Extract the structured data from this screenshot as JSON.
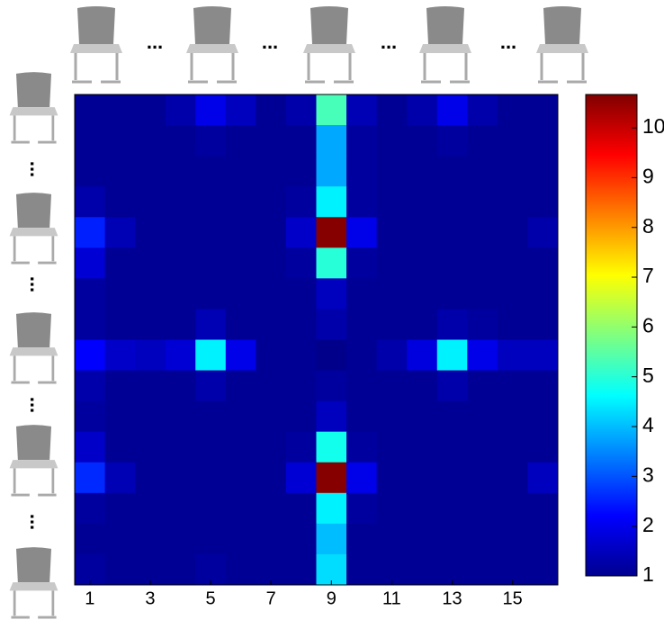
{
  "chart_data": {
    "type": "heatmap",
    "separator": "...",
    "x": [
      1,
      2,
      3,
      4,
      5,
      6,
      7,
      8,
      9,
      10,
      11,
      12,
      13,
      14,
      15,
      16
    ],
    "xlim": [
      0.5,
      16.5
    ],
    "xticks": [
      1,
      3,
      5,
      7,
      9,
      11,
      13,
      15
    ],
    "values": [
      [
        1.2,
        1.2,
        1.2,
        1.4,
        2.0,
        1.6,
        1.2,
        1.4,
        5.3,
        1.5,
        1.2,
        1.4,
        2.0,
        1.4,
        1.2,
        1.2
      ],
      [
        1.2,
        1.2,
        1.2,
        1.2,
        1.3,
        1.2,
        1.2,
        1.2,
        3.8,
        1.3,
        1.2,
        1.2,
        1.3,
        1.2,
        1.2,
        1.2
      ],
      [
        1.2,
        1.2,
        1.2,
        1.2,
        1.2,
        1.2,
        1.2,
        1.2,
        3.8,
        1.3,
        1.2,
        1.2,
        1.2,
        1.2,
        1.2,
        1.2
      ],
      [
        1.4,
        1.2,
        1.2,
        1.2,
        1.2,
        1.2,
        1.2,
        1.3,
        4.5,
        1.3,
        1.2,
        1.2,
        1.2,
        1.2,
        1.2,
        1.2
      ],
      [
        2.5,
        1.5,
        1.2,
        1.2,
        1.2,
        1.2,
        1.2,
        1.7,
        10.6,
        2.0,
        1.2,
        1.2,
        1.2,
        1.2,
        1.2,
        1.4
      ],
      [
        1.8,
        1.2,
        1.2,
        1.2,
        1.2,
        1.2,
        1.2,
        1.3,
        5.0,
        1.3,
        1.2,
        1.2,
        1.2,
        1.2,
        1.2,
        1.2
      ],
      [
        1.3,
        1.2,
        1.2,
        1.2,
        1.2,
        1.2,
        1.2,
        1.2,
        1.6,
        1.2,
        1.2,
        1.2,
        1.2,
        1.2,
        1.2,
        1.2
      ],
      [
        1.3,
        1.2,
        1.2,
        1.2,
        1.5,
        1.2,
        1.2,
        1.2,
        1.4,
        1.2,
        1.2,
        1.2,
        1.4,
        1.3,
        1.2,
        1.2
      ],
      [
        2.2,
        1.7,
        1.6,
        1.8,
        4.5,
        2.0,
        1.2,
        1.2,
        1.1,
        1.2,
        1.4,
        1.9,
        4.5,
        2.0,
        1.6,
        1.6
      ],
      [
        1.4,
        1.2,
        1.2,
        1.2,
        1.4,
        1.2,
        1.2,
        1.2,
        1.3,
        1.2,
        1.2,
        1.2,
        1.4,
        1.2,
        1.2,
        1.2
      ],
      [
        1.3,
        1.2,
        1.2,
        1.2,
        1.2,
        1.2,
        1.2,
        1.2,
        1.6,
        1.2,
        1.2,
        1.2,
        1.2,
        1.2,
        1.2,
        1.2
      ],
      [
        1.7,
        1.2,
        1.2,
        1.2,
        1.2,
        1.2,
        1.2,
        1.3,
        4.8,
        1.3,
        1.2,
        1.2,
        1.2,
        1.2,
        1.2,
        1.2
      ],
      [
        2.6,
        1.5,
        1.2,
        1.2,
        1.2,
        1.2,
        1.2,
        1.8,
        10.6,
        2.0,
        1.2,
        1.2,
        1.2,
        1.2,
        1.2,
        1.6
      ],
      [
        1.3,
        1.2,
        1.2,
        1.2,
        1.2,
        1.2,
        1.2,
        1.2,
        4.5,
        1.3,
        1.2,
        1.2,
        1.2,
        1.2,
        1.2,
        1.2
      ],
      [
        1.2,
        1.2,
        1.2,
        1.2,
        1.2,
        1.2,
        1.2,
        1.2,
        4.0,
        1.2,
        1.2,
        1.2,
        1.2,
        1.2,
        1.2,
        1.2
      ],
      [
        1.3,
        1.2,
        1.2,
        1.2,
        1.3,
        1.2,
        1.2,
        1.2,
        4.3,
        1.2,
        1.2,
        1.2,
        1.2,
        1.2,
        1.2,
        1.2
      ]
    ],
    "colormap": "jet",
    "clim": [
      1,
      10.67
    ],
    "cticks": [
      1,
      2,
      3,
      4,
      5,
      6,
      7,
      8,
      9,
      10
    ]
  }
}
